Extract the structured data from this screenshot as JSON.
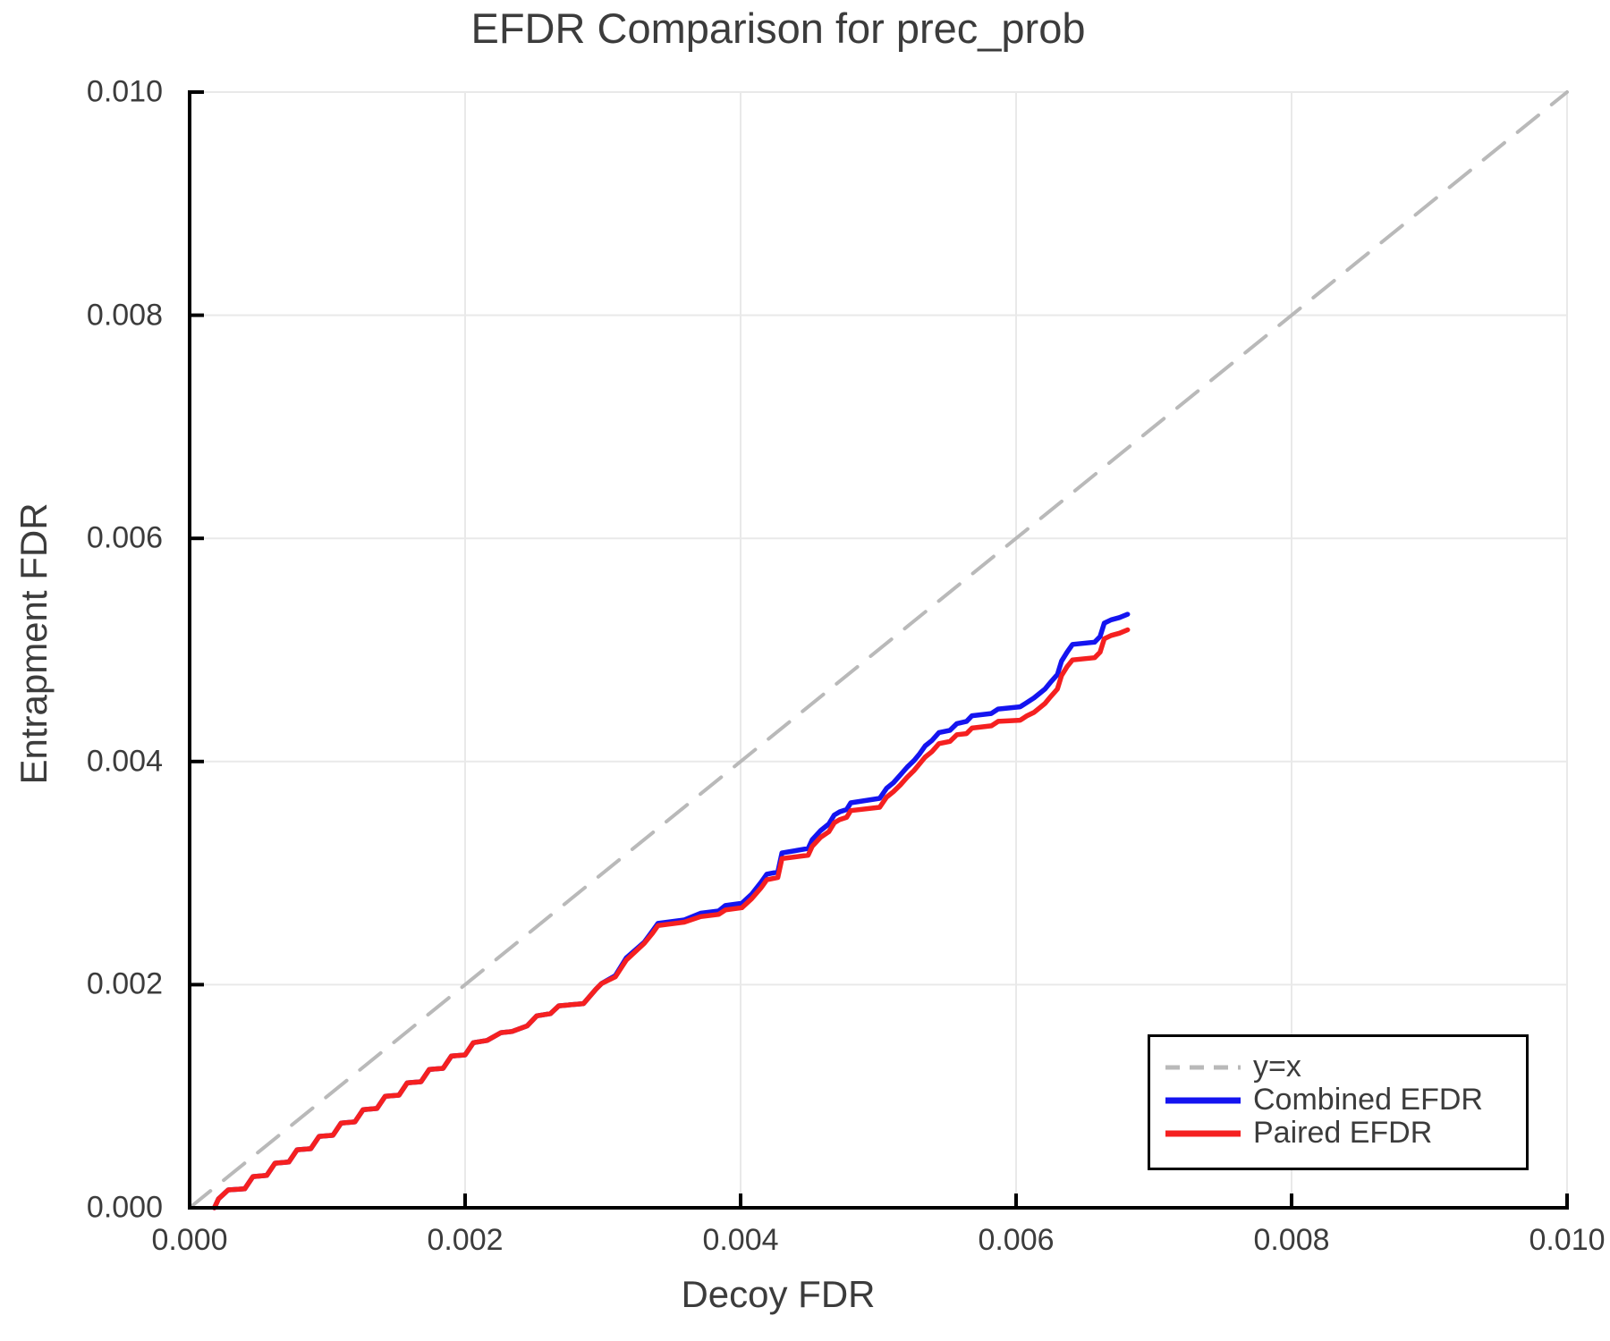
{
  "figure": {
    "background": "#ffffff",
    "text_color": "#3c3c3c",
    "grid_color": "#e9e9e9",
    "axis_color": "#000000",
    "reference_line_color": "#b9b9b9",
    "combined_color": "#1414f0",
    "paired_color": "#f52020"
  },
  "chart_data": {
    "type": "line",
    "title": "EFDR Comparison for prec_prob",
    "xlabel": "Decoy FDR",
    "ylabel": "Entrapment FDR",
    "xlim": [
      0.0,
      0.01
    ],
    "ylim": [
      0.0,
      0.01
    ],
    "grid": true,
    "legend_position": "bottom-right",
    "xticks": [
      0.0,
      0.002,
      0.004,
      0.006,
      0.008,
      0.01
    ],
    "xtick_labels": [
      "0.000",
      "0.002",
      "0.004",
      "0.006",
      "0.008",
      "0.010"
    ],
    "yticks": [
      0.0,
      0.002,
      0.004,
      0.006,
      0.008,
      0.01
    ],
    "ytick_labels": [
      "0.000",
      "0.002",
      "0.004",
      "0.006",
      "0.008",
      "0.010"
    ],
    "series": [
      {
        "name": "y=x",
        "style": "dashed",
        "color": "#b9b9b9",
        "width": 4,
        "points": [
          [
            0.0,
            0.0
          ],
          [
            0.01,
            0.01
          ]
        ]
      },
      {
        "name": "Combined EFDR",
        "style": "solid",
        "color": "#1414f0",
        "width": 5.5,
        "points": [
          [
            0.00018,
            0.0
          ],
          [
            0.00021,
            8e-05
          ],
          [
            0.00028,
            0.00016
          ],
          [
            0.0004,
            0.00017
          ],
          [
            0.00046,
            0.00028
          ],
          [
            0.00056,
            0.00029
          ],
          [
            0.00062,
            0.0004
          ],
          [
            0.00072,
            0.00041
          ],
          [
            0.00078,
            0.00052
          ],
          [
            0.00088,
            0.00053
          ],
          [
            0.00094,
            0.00064
          ],
          [
            0.00104,
            0.00065
          ],
          [
            0.0011,
            0.00076
          ],
          [
            0.0012,
            0.00077
          ],
          [
            0.00126,
            0.00088
          ],
          [
            0.00136,
            0.00089
          ],
          [
            0.00142,
            0.001
          ],
          [
            0.00152,
            0.00101
          ],
          [
            0.00158,
            0.00112
          ],
          [
            0.00168,
            0.00113
          ],
          [
            0.00174,
            0.00124
          ],
          [
            0.00184,
            0.00125
          ],
          [
            0.0019,
            0.00136
          ],
          [
            0.002,
            0.00137
          ],
          [
            0.00206,
            0.00148
          ],
          [
            0.00216,
            0.0015
          ],
          [
            0.00226,
            0.00157
          ],
          [
            0.00234,
            0.00158
          ],
          [
            0.00245,
            0.00163
          ],
          [
            0.00252,
            0.00172
          ],
          [
            0.00262,
            0.00174
          ],
          [
            0.00268,
            0.00181
          ],
          [
            0.00286,
            0.00183
          ],
          [
            0.00295,
            0.00196
          ],
          [
            0.00299,
            0.00201
          ],
          [
            0.00309,
            0.00208
          ],
          [
            0.00317,
            0.00224
          ],
          [
            0.0033,
            0.00238
          ],
          [
            0.00336,
            0.00248
          ],
          [
            0.0034,
            0.00255
          ],
          [
            0.00359,
            0.00258
          ],
          [
            0.00371,
            0.00264
          ],
          [
            0.00384,
            0.00266
          ],
          [
            0.00389,
            0.00271
          ],
          [
            0.00401,
            0.00273
          ],
          [
            0.00408,
            0.00281
          ],
          [
            0.00415,
            0.00292
          ],
          [
            0.00419,
            0.00299
          ],
          [
            0.00427,
            0.00301
          ],
          [
            0.0043,
            0.00318
          ],
          [
            0.00449,
            0.00322
          ],
          [
            0.00452,
            0.0033
          ],
          [
            0.00458,
            0.00338
          ],
          [
            0.00464,
            0.00344
          ],
          [
            0.00468,
            0.00352
          ],
          [
            0.00472,
            0.00355
          ],
          [
            0.00477,
            0.00357
          ],
          [
            0.0048,
            0.00363
          ],
          [
            0.00501,
            0.00367
          ],
          [
            0.00506,
            0.00376
          ],
          [
            0.00511,
            0.00381
          ],
          [
            0.00516,
            0.00388
          ],
          [
            0.00521,
            0.00395
          ],
          [
            0.00526,
            0.00401
          ],
          [
            0.0053,
            0.00407
          ],
          [
            0.00534,
            0.00414
          ],
          [
            0.00539,
            0.00419
          ],
          [
            0.00544,
            0.00426
          ],
          [
            0.00552,
            0.00428
          ],
          [
            0.00557,
            0.00434
          ],
          [
            0.00564,
            0.00436
          ],
          [
            0.00568,
            0.00441
          ],
          [
            0.00582,
            0.00443
          ],
          [
            0.00587,
            0.00447
          ],
          [
            0.00603,
            0.00449
          ],
          [
            0.00608,
            0.00453
          ],
          [
            0.00613,
            0.00457
          ],
          [
            0.00617,
            0.00461
          ],
          [
            0.00621,
            0.00465
          ],
          [
            0.00625,
            0.00471
          ],
          [
            0.0063,
            0.00478
          ],
          [
            0.00633,
            0.0049
          ],
          [
            0.00637,
            0.00498
          ],
          [
            0.00641,
            0.00505
          ],
          [
            0.00657,
            0.00507
          ],
          [
            0.00661,
            0.00512
          ],
          [
            0.00664,
            0.00524
          ],
          [
            0.00669,
            0.00527
          ],
          [
            0.00675,
            0.00529
          ],
          [
            0.00681,
            0.00532
          ]
        ]
      },
      {
        "name": "Paired EFDR",
        "style": "solid",
        "color": "#f52020",
        "width": 5.5,
        "points": [
          [
            0.00018,
            0.0
          ],
          [
            0.00021,
            8e-05
          ],
          [
            0.00028,
            0.00016
          ],
          [
            0.0004,
            0.00017
          ],
          [
            0.00046,
            0.00028
          ],
          [
            0.00056,
            0.00029
          ],
          [
            0.00062,
            0.0004
          ],
          [
            0.00072,
            0.00041
          ],
          [
            0.00078,
            0.00052
          ],
          [
            0.00088,
            0.00053
          ],
          [
            0.00094,
            0.00064
          ],
          [
            0.00104,
            0.00065
          ],
          [
            0.0011,
            0.00076
          ],
          [
            0.0012,
            0.00077
          ],
          [
            0.00126,
            0.00088
          ],
          [
            0.00136,
            0.00089
          ],
          [
            0.00142,
            0.001
          ],
          [
            0.00152,
            0.00101
          ],
          [
            0.00158,
            0.00112
          ],
          [
            0.00168,
            0.00113
          ],
          [
            0.00174,
            0.00124
          ],
          [
            0.00184,
            0.00125
          ],
          [
            0.0019,
            0.00136
          ],
          [
            0.002,
            0.00137
          ],
          [
            0.00206,
            0.00148
          ],
          [
            0.00216,
            0.0015
          ],
          [
            0.00226,
            0.00157
          ],
          [
            0.00234,
            0.00158
          ],
          [
            0.00245,
            0.00163
          ],
          [
            0.00252,
            0.00172
          ],
          [
            0.00262,
            0.00174
          ],
          [
            0.00268,
            0.00181
          ],
          [
            0.00286,
            0.00183
          ],
          [
            0.00295,
            0.00196
          ],
          [
            0.00299,
            0.00201
          ],
          [
            0.00309,
            0.00207
          ],
          [
            0.00317,
            0.00222
          ],
          [
            0.0033,
            0.00237
          ],
          [
            0.00336,
            0.00246
          ],
          [
            0.0034,
            0.00253
          ],
          [
            0.00359,
            0.00256
          ],
          [
            0.00371,
            0.00261
          ],
          [
            0.00384,
            0.00263
          ],
          [
            0.00389,
            0.00267
          ],
          [
            0.00401,
            0.00269
          ],
          [
            0.00408,
            0.00277
          ],
          [
            0.00415,
            0.00287
          ],
          [
            0.00419,
            0.00294
          ],
          [
            0.00427,
            0.00296
          ],
          [
            0.0043,
            0.00313
          ],
          [
            0.00449,
            0.00316
          ],
          [
            0.00452,
            0.00324
          ],
          [
            0.00458,
            0.00332
          ],
          [
            0.00464,
            0.00337
          ],
          [
            0.00468,
            0.00345
          ],
          [
            0.00472,
            0.00348
          ],
          [
            0.00477,
            0.0035
          ],
          [
            0.0048,
            0.00356
          ],
          [
            0.00501,
            0.00359
          ],
          [
            0.00506,
            0.00368
          ],
          [
            0.00511,
            0.00373
          ],
          [
            0.00516,
            0.00379
          ],
          [
            0.00521,
            0.00386
          ],
          [
            0.00526,
            0.00392
          ],
          [
            0.0053,
            0.00398
          ],
          [
            0.00534,
            0.00404
          ],
          [
            0.00539,
            0.00409
          ],
          [
            0.00544,
            0.00416
          ],
          [
            0.00552,
            0.00418
          ],
          [
            0.00557,
            0.00424
          ],
          [
            0.00564,
            0.00425
          ],
          [
            0.00568,
            0.0043
          ],
          [
            0.00582,
            0.00432
          ],
          [
            0.00587,
            0.00436
          ],
          [
            0.00603,
            0.00437
          ],
          [
            0.00608,
            0.00441
          ],
          [
            0.00613,
            0.00444
          ],
          [
            0.00617,
            0.00448
          ],
          [
            0.00621,
            0.00452
          ],
          [
            0.00625,
            0.00458
          ],
          [
            0.0063,
            0.00465
          ],
          [
            0.00633,
            0.00477
          ],
          [
            0.00637,
            0.00485
          ],
          [
            0.00641,
            0.00491
          ],
          [
            0.00657,
            0.00493
          ],
          [
            0.00661,
            0.00498
          ],
          [
            0.00664,
            0.0051
          ],
          [
            0.00669,
            0.00513
          ],
          [
            0.00675,
            0.00515
          ],
          [
            0.00681,
            0.00518
          ]
        ]
      }
    ]
  }
}
